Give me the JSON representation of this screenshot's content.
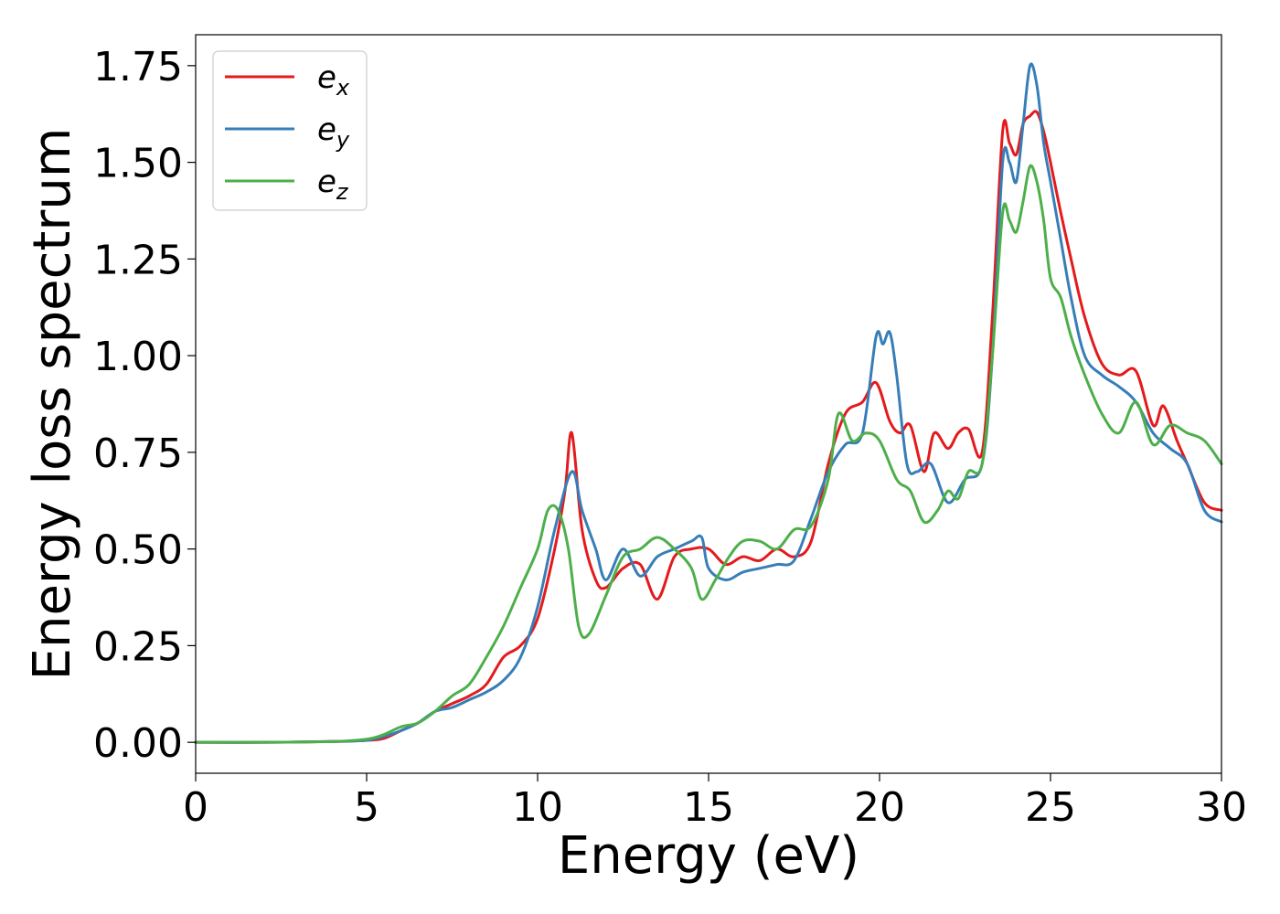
{
  "chart_data": {
    "type": "line",
    "xlabel": "Energy (eV)",
    "ylabel": "Energy loss spectrum",
    "xlim": [
      0,
      30
    ],
    "ylim": [
      -0.08,
      1.83
    ],
    "xticks": [
      0,
      5,
      10,
      15,
      20,
      25,
      30
    ],
    "xtick_labels": [
      "0",
      "5",
      "10",
      "15",
      "20",
      "25",
      "30"
    ],
    "yticks": [
      0,
      0.25,
      0.5,
      0.75,
      1.0,
      1.25,
      1.5,
      1.75
    ],
    "ytick_labels": [
      "0.00",
      "0.25",
      "0.50",
      "0.75",
      "1.00",
      "1.25",
      "1.50",
      "1.75"
    ],
    "grid": false,
    "legend_position": "top-left",
    "series": [
      {
        "name": "e_x",
        "legend_base": "e",
        "legend_sub": "x",
        "color": "#e41a1c",
        "x": [
          0,
          2,
          4,
          5,
          5.5,
          6,
          6.5,
          7,
          7.5,
          8,
          8.5,
          9,
          9.5,
          10,
          10.5,
          10.8,
          11,
          11.3,
          11.7,
          12,
          12.5,
          13,
          13.5,
          14,
          14.5,
          15,
          15.5,
          16,
          16.5,
          17,
          17.5,
          18,
          18.5,
          19,
          19.5,
          19.9,
          20.3,
          20.6,
          20.9,
          21.3,
          21.6,
          22,
          22.3,
          22.6,
          23,
          23.3,
          23.6,
          23.8,
          24,
          24.2,
          24.4,
          24.6,
          24.8,
          25,
          25.3,
          25.6,
          26,
          26.5,
          27,
          27.5,
          28,
          28.3,
          28.7,
          29,
          29.5,
          30
        ],
        "y": [
          0,
          0,
          0.002,
          0.005,
          0.01,
          0.03,
          0.05,
          0.08,
          0.1,
          0.12,
          0.15,
          0.22,
          0.25,
          0.32,
          0.5,
          0.65,
          0.8,
          0.55,
          0.42,
          0.4,
          0.45,
          0.46,
          0.37,
          0.48,
          0.5,
          0.5,
          0.46,
          0.48,
          0.47,
          0.5,
          0.48,
          0.52,
          0.72,
          0.85,
          0.88,
          0.93,
          0.83,
          0.8,
          0.82,
          0.7,
          0.8,
          0.76,
          0.8,
          0.81,
          0.75,
          1.1,
          1.58,
          1.55,
          1.52,
          1.6,
          1.62,
          1.63,
          1.58,
          1.5,
          1.37,
          1.25,
          1.1,
          0.98,
          0.95,
          0.96,
          0.82,
          0.87,
          0.78,
          0.72,
          0.62,
          0.6
        ]
      },
      {
        "name": "e_y",
        "legend_base": "e",
        "legend_sub": "y",
        "color": "#377eb8",
        "x": [
          0,
          2,
          4,
          5,
          5.5,
          6,
          6.5,
          7,
          7.5,
          8,
          8.5,
          9,
          9.5,
          10,
          10.5,
          11,
          11.3,
          11.7,
          12,
          12.5,
          13,
          13.5,
          14,
          14.5,
          14.8,
          15,
          15.5,
          16,
          16.5,
          17,
          17.5,
          18,
          18.5,
          19,
          19.5,
          19.9,
          20.1,
          20.3,
          20.5,
          20.8,
          21.1,
          21.5,
          22,
          22.5,
          23,
          23.3,
          23.6,
          23.8,
          24,
          24.2,
          24.4,
          24.6,
          24.8,
          25,
          25.3,
          25.6,
          26,
          26.5,
          27,
          27.5,
          28,
          28.5,
          29,
          29.5,
          30
        ],
        "y": [
          0,
          0,
          0.002,
          0.005,
          0.015,
          0.03,
          0.05,
          0.08,
          0.09,
          0.11,
          0.13,
          0.16,
          0.22,
          0.35,
          0.55,
          0.7,
          0.6,
          0.5,
          0.42,
          0.5,
          0.43,
          0.48,
          0.5,
          0.52,
          0.53,
          0.45,
          0.42,
          0.44,
          0.45,
          0.46,
          0.47,
          0.58,
          0.7,
          0.77,
          0.8,
          1.05,
          1.03,
          1.06,
          0.95,
          0.72,
          0.7,
          0.72,
          0.62,
          0.68,
          0.72,
          1.0,
          1.5,
          1.5,
          1.45,
          1.6,
          1.75,
          1.7,
          1.55,
          1.45,
          1.3,
          1.15,
          1.0,
          0.95,
          0.92,
          0.88,
          0.8,
          0.76,
          0.72,
          0.6,
          0.57
        ]
      },
      {
        "name": "e_z",
        "legend_base": "e",
        "legend_sub": "z",
        "color": "#4daf4a",
        "x": [
          0,
          2,
          4,
          5,
          5.5,
          6,
          6.5,
          7,
          7.5,
          8,
          8.5,
          9,
          9.5,
          10,
          10.3,
          10.6,
          10.9,
          11.2,
          11.5,
          12,
          12.5,
          13,
          13.5,
          14,
          14.5,
          14.8,
          15.2,
          15.6,
          16,
          16.5,
          17,
          17.5,
          18,
          18.5,
          18.8,
          19.2,
          19.6,
          20,
          20.5,
          20.9,
          21.3,
          21.7,
          22,
          22.3,
          22.6,
          23,
          23.3,
          23.6,
          23.8,
          24,
          24.2,
          24.4,
          24.6,
          24.8,
          25,
          25.3,
          25.6,
          26,
          26.5,
          27,
          27.5,
          28,
          28.5,
          29,
          29.5,
          30
        ],
        "y": [
          0,
          0,
          0.002,
          0.008,
          0.02,
          0.04,
          0.05,
          0.08,
          0.12,
          0.15,
          0.22,
          0.3,
          0.4,
          0.5,
          0.6,
          0.6,
          0.5,
          0.3,
          0.28,
          0.38,
          0.48,
          0.5,
          0.53,
          0.5,
          0.45,
          0.37,
          0.42,
          0.48,
          0.52,
          0.52,
          0.5,
          0.55,
          0.56,
          0.68,
          0.85,
          0.78,
          0.8,
          0.78,
          0.68,
          0.65,
          0.57,
          0.6,
          0.65,
          0.63,
          0.7,
          0.72,
          1.0,
          1.37,
          1.35,
          1.32,
          1.4,
          1.49,
          1.45,
          1.35,
          1.2,
          1.15,
          1.05,
          0.95,
          0.85,
          0.8,
          0.88,
          0.77,
          0.82,
          0.8,
          0.78,
          0.72
        ]
      }
    ]
  }
}
